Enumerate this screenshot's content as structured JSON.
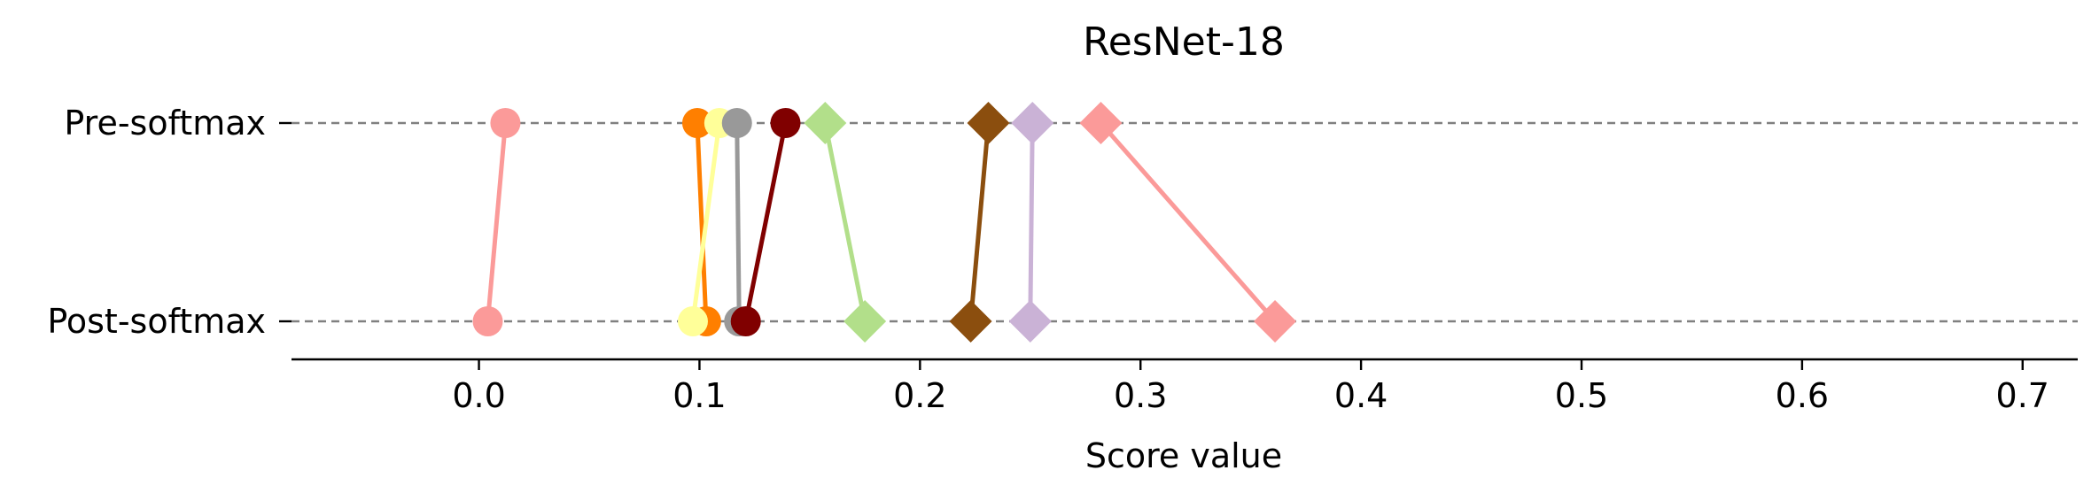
{
  "chart_data": {
    "type": "dumbbell",
    "title": "ResNet-18",
    "xlabel": "Score value",
    "xlim": [
      -0.085,
      0.725
    ],
    "xticks": [
      0.0,
      0.1,
      0.2,
      0.3,
      0.4,
      0.5,
      0.6,
      0.7
    ],
    "xtick_labels": [
      "0.0",
      "0.1",
      "0.2",
      "0.3",
      "0.4",
      "0.5",
      "0.6",
      "0.7"
    ],
    "y_categories": [
      "Pre-softmax",
      "Post-softmax"
    ],
    "grid": "dashed horizontal lines at each category",
    "series": [
      {
        "marker": "circle",
        "color": "#fb9a99",
        "pre": 0.012,
        "post": 0.004
      },
      {
        "marker": "circle",
        "color": "#ff7f00",
        "pre": 0.099,
        "post": 0.103
      },
      {
        "marker": "circle",
        "color": "#ffff99",
        "pre": 0.109,
        "post": 0.097
      },
      {
        "marker": "circle",
        "color": "#999999",
        "pre": 0.117,
        "post": 0.118
      },
      {
        "marker": "circle",
        "color": "#800000",
        "pre": 0.139,
        "post": 0.121
      },
      {
        "marker": "diamond",
        "color": "#b2df8a",
        "pre": 0.157,
        "post": 0.175
      },
      {
        "marker": "diamond",
        "color": "#8b4e0e",
        "pre": 0.231,
        "post": 0.223
      },
      {
        "marker": "diamond",
        "color": "#cab2d6",
        "pre": 0.251,
        "post": 0.25
      },
      {
        "marker": "diamond",
        "color": "#fb9a99",
        "pre": 0.282,
        "post": 0.361
      }
    ]
  }
}
